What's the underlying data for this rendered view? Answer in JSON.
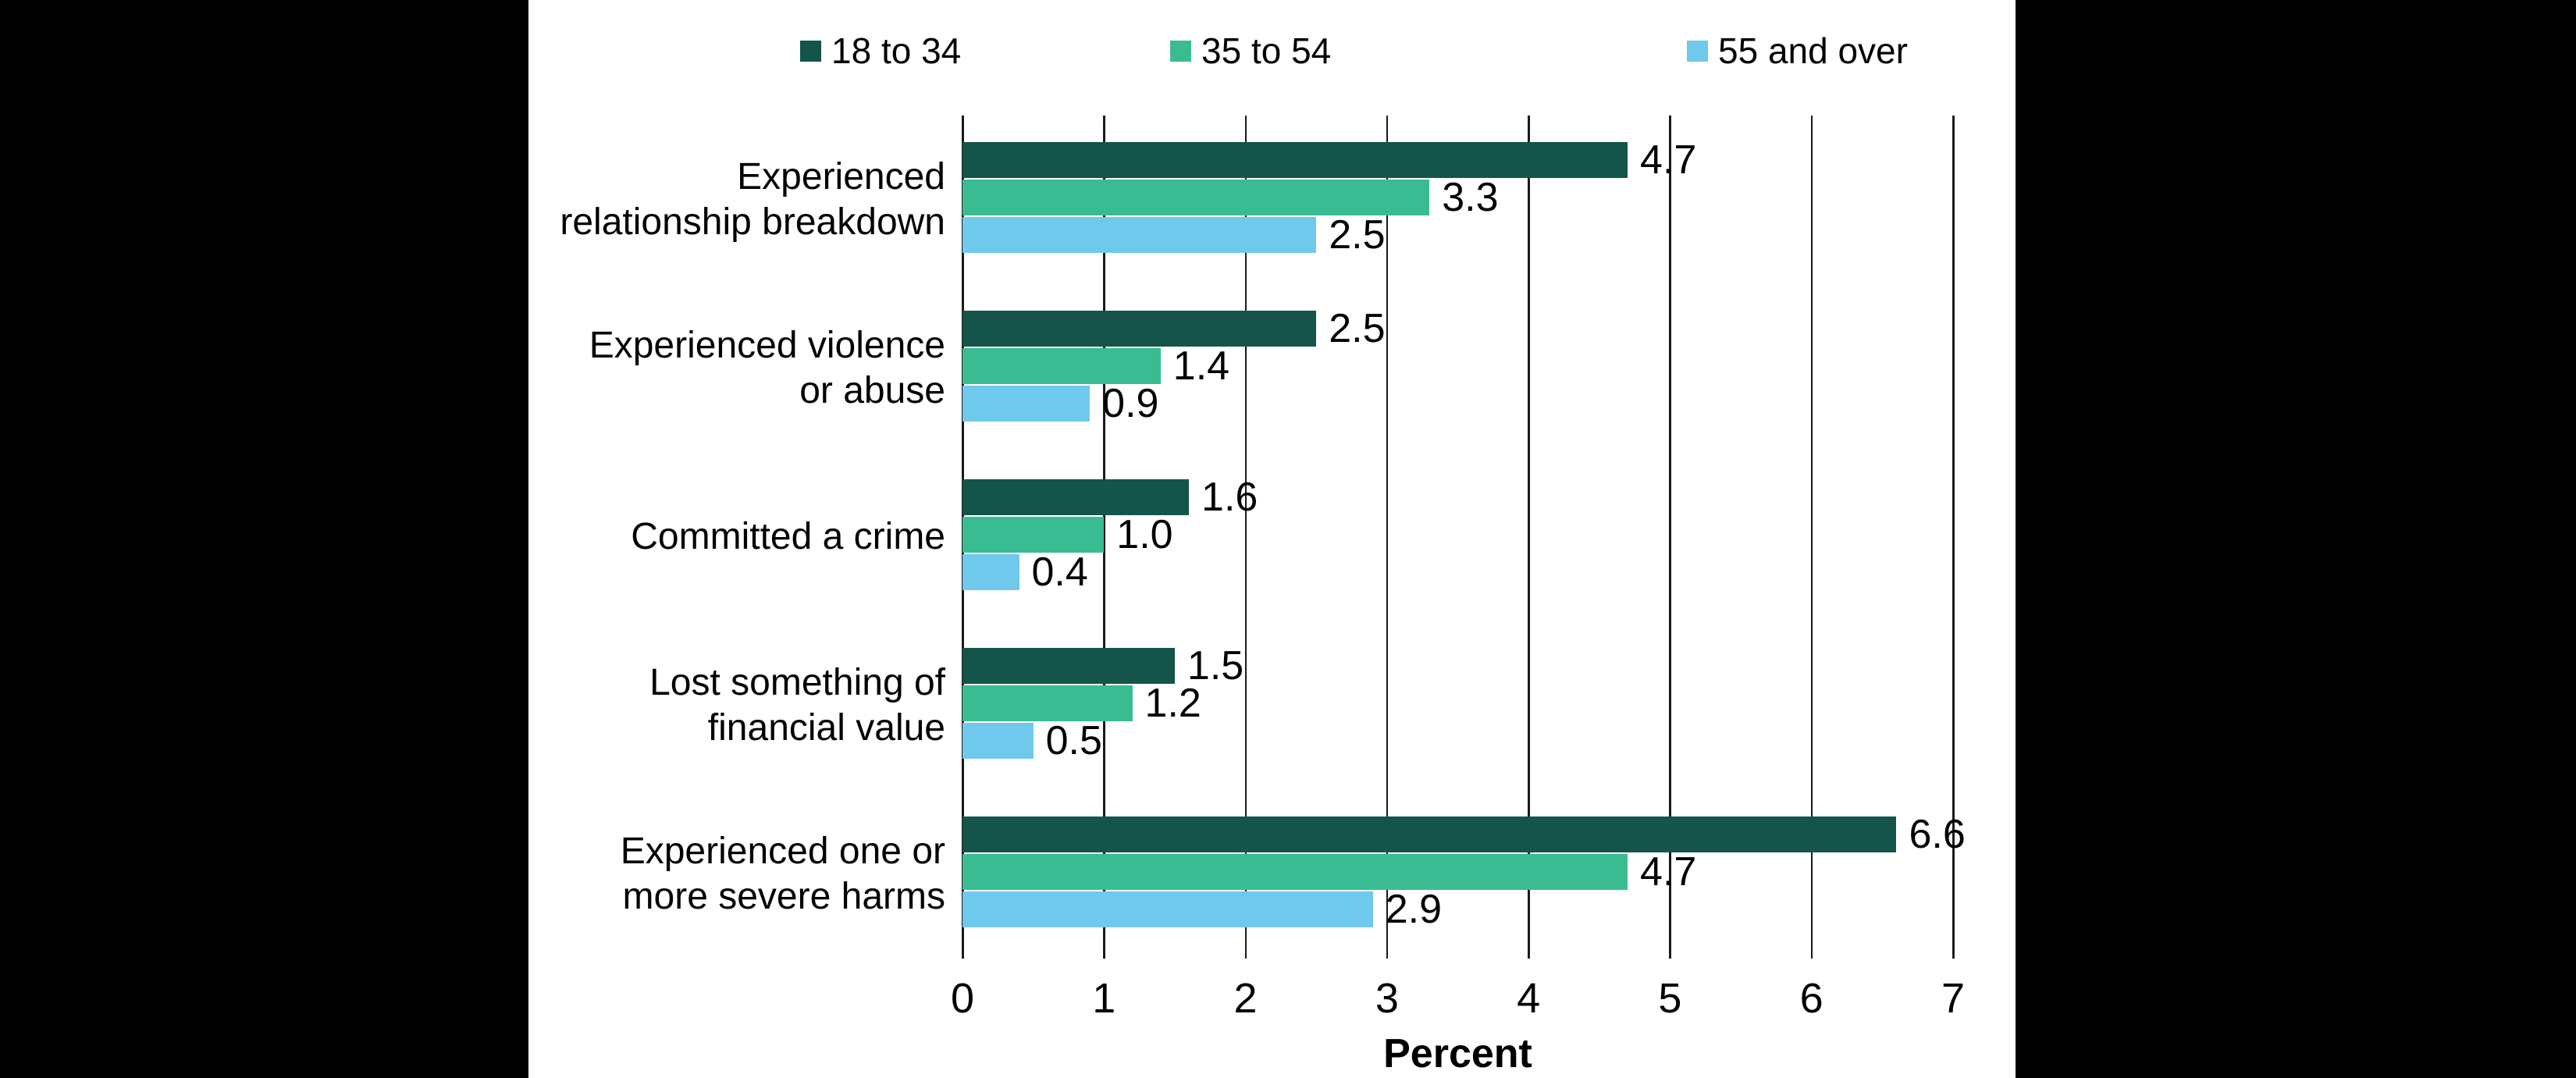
{
  "chart_data": {
    "type": "bar",
    "orientation": "horizontal",
    "title": "",
    "categories": [
      "Experienced relationship breakdown",
      "Experienced violence or abuse",
      "Committed a crime",
      "Lost something of financial value",
      "Experienced one or more severe harms"
    ],
    "category_lines": [
      [
        "Experienced",
        "relationship breakdown"
      ],
      [
        "Experienced violence",
        "or abuse"
      ],
      [
        "Committed a crime"
      ],
      [
        "Lost something of",
        "financial value"
      ],
      [
        "Experienced one or",
        "more severe harms"
      ]
    ],
    "series": [
      {
        "name": "18 to 34",
        "color": "#14544B",
        "values": [
          4.7,
          2.5,
          1.6,
          1.5,
          6.6
        ]
      },
      {
        "name": "35 to 54",
        "color": "#3ABC92",
        "values": [
          3.3,
          1.4,
          1.0,
          1.2,
          4.7
        ]
      },
      {
        "name": "55 and over",
        "color": "#6EC9EC",
        "values": [
          2.5,
          0.9,
          0.4,
          0.5,
          2.9
        ]
      }
    ],
    "xlabel": "Percent",
    "xlim": [
      0,
      7
    ],
    "xticks": [
      0,
      1,
      2,
      3,
      4,
      5,
      6,
      7
    ],
    "grid": true,
    "legend_position": "top",
    "value_labels": true,
    "value_label_decimals": 1,
    "gridline_color": "#1a1a1a",
    "background_color": "#ffffff",
    "surround_color": "#000000"
  }
}
